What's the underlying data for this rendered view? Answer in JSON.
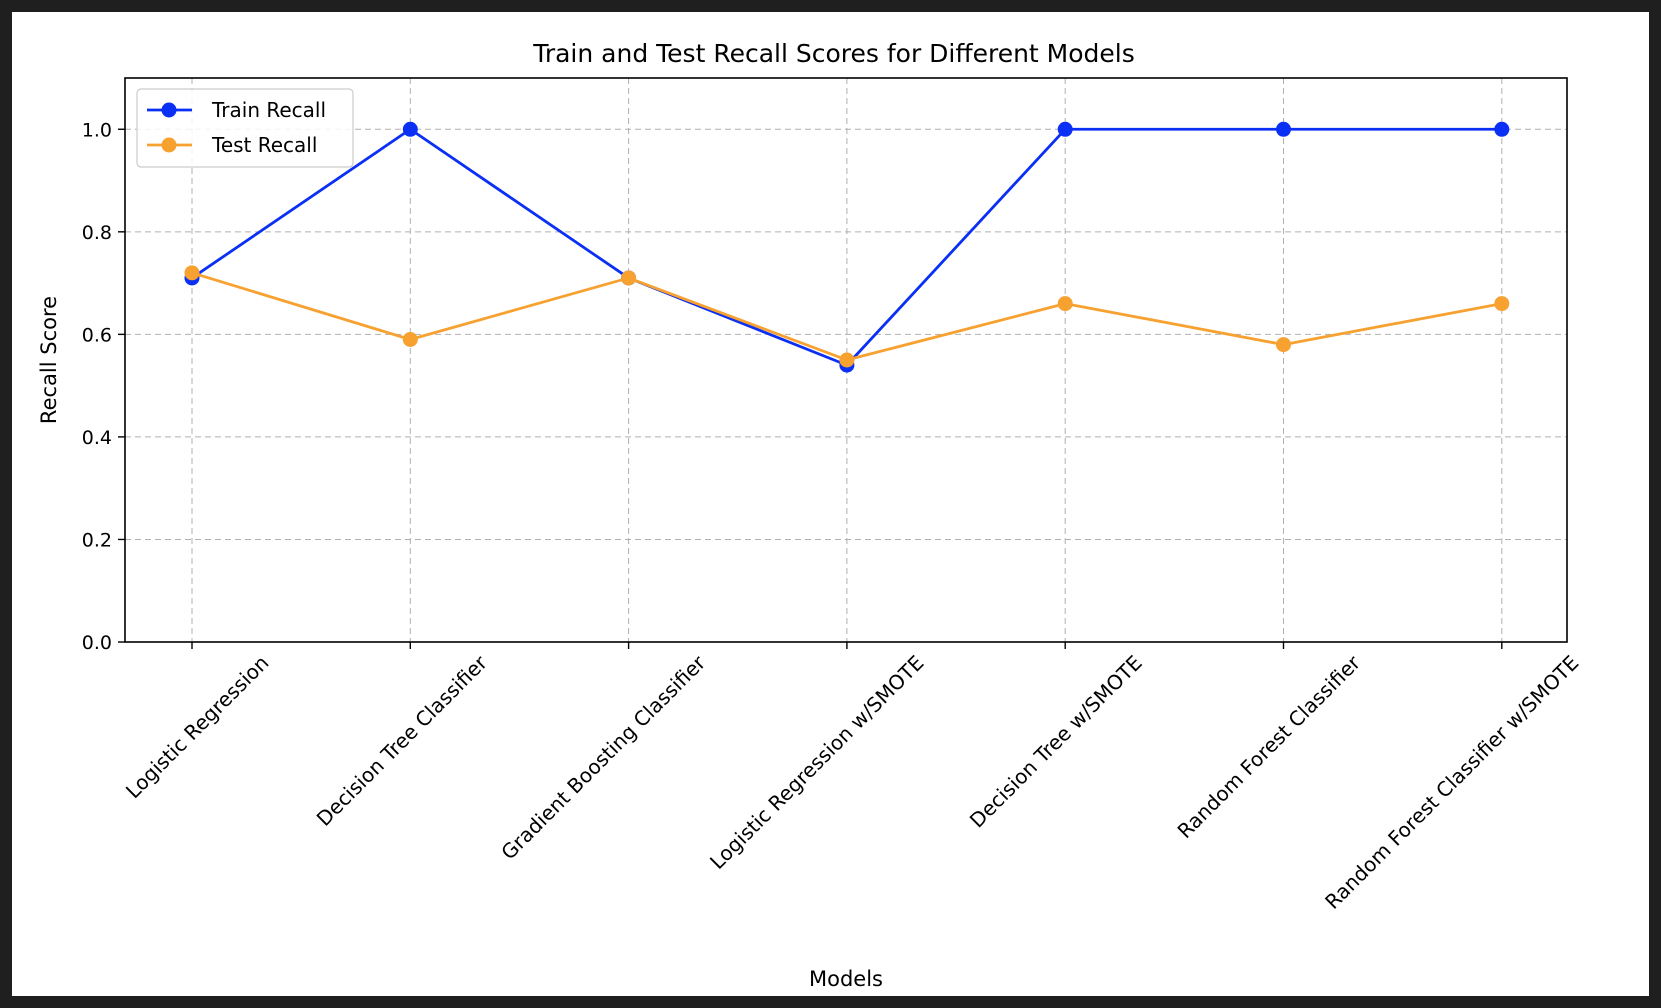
{
  "chart_data": {
    "type": "line",
    "title": "Train and Test Recall Scores for Different Models",
    "xlabel": "Models",
    "ylabel": "Recall Score",
    "ylim": [
      0,
      1.1
    ],
    "yticks": [
      0.0,
      0.2,
      0.4,
      0.6,
      0.8,
      1.0
    ],
    "yticklabels": [
      "0.0",
      "0.2",
      "0.4",
      "0.6",
      "0.8",
      "1.0"
    ],
    "grid": true,
    "legend_position": "upper-left",
    "categories": [
      "Logistic Regression",
      "Decision Tree Classifier",
      "Gradient Boosting Classifier",
      "Logistic Regression w/SMOTE",
      "Decision Tree w/SMOTE",
      "Random Forest Classifier",
      "Random Forest Classifier w/SMOTE"
    ],
    "series": [
      {
        "name": "Train Recall",
        "color": "#0a2ff5",
        "values": [
          0.71,
          1.0,
          0.71,
          0.54,
          1.0,
          1.0,
          1.0
        ]
      },
      {
        "name": "Test Recall",
        "color": "#f7a130",
        "values": [
          0.72,
          0.59,
          0.71,
          0.55,
          0.66,
          0.58,
          0.66
        ]
      }
    ]
  }
}
